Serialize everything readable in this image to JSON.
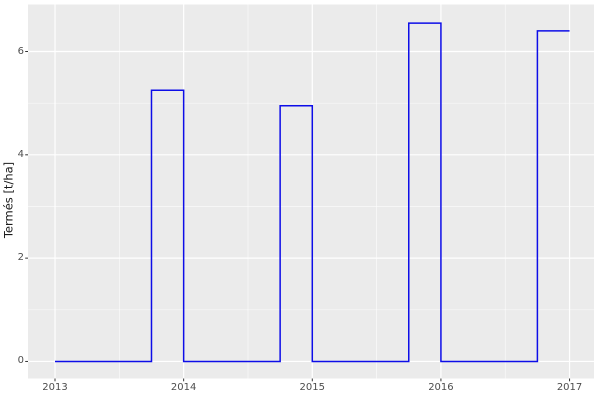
{
  "style": {
    "figure_bg": "#ffffff",
    "panel_bg": "#ebebeb",
    "grid_major_color": "#ffffff",
    "grid_minor_color": "#ffffff",
    "line_color": "#0d0de8",
    "tick_mark_color": "#333333",
    "tick_label_color": "#4d4d4d",
    "axis_title_color": "#1a1a1a"
  },
  "chart_data": {
    "type": "line",
    "subtype": "step",
    "title": "",
    "xlabel": "",
    "ylabel": "Termés [t/ha]",
    "legend": "none",
    "grid": true,
    "x_ticks": [
      2013,
      2014,
      2015,
      2016,
      2017
    ],
    "x_tick_labels": [
      "2013",
      "2014",
      "2015",
      "2016",
      "2017"
    ],
    "y_ticks": [
      0,
      2,
      4,
      6
    ],
    "y_tick_labels": [
      "0",
      "2",
      "4",
      "6"
    ],
    "x_minor": [
      2013.5,
      2014.5,
      2015.5,
      2016.5
    ],
    "y_minor": [
      1,
      3,
      5
    ],
    "xlim": [
      2012.79,
      2017.19
    ],
    "ylim": [
      -0.33,
      6.91
    ],
    "series": [
      {
        "name": "Termés",
        "points": [
          [
            2013.0,
            0
          ],
          [
            2013.75,
            0
          ],
          [
            2013.75,
            5.25
          ],
          [
            2014.0,
            5.25
          ],
          [
            2014.0,
            0
          ],
          [
            2014.75,
            0
          ],
          [
            2014.75,
            4.95
          ],
          [
            2015.0,
            4.95
          ],
          [
            2015.0,
            0
          ],
          [
            2015.75,
            0
          ],
          [
            2015.75,
            6.55
          ],
          [
            2016.0,
            6.55
          ],
          [
            2016.0,
            0
          ],
          [
            2016.75,
            0
          ],
          [
            2016.75,
            6.4
          ],
          [
            2017.0,
            6.4
          ]
        ]
      }
    ],
    "pulses": [
      {
        "start": 2013.75,
        "end": 2014,
        "value": 5.25
      },
      {
        "start": 2014.75,
        "end": 2015,
        "value": 4.95
      },
      {
        "start": 2015.75,
        "end": 2016,
        "value": 6.55
      },
      {
        "start": 2016.75,
        "end": 2017,
        "value": 6.4
      }
    ]
  }
}
